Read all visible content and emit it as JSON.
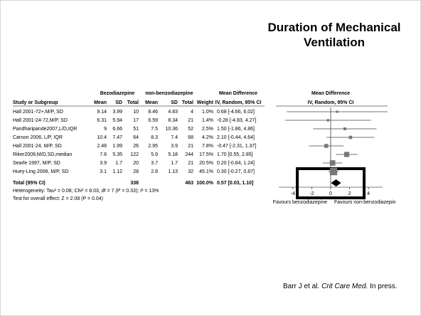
{
  "title": "Duration of Mechanical Ventilation",
  "citation": {
    "authors": "Barr J et al.",
    "journal": "Crit Care Med.",
    "status": "In press."
  },
  "chart_data": {
    "type": "forest",
    "column_groups": [
      "Bezodiazepine",
      "non-benzodiazepine",
      "Mean Difference",
      "Mean Difference"
    ],
    "columns": [
      "Study or Subgroup",
      "Mean",
      "SD",
      "Total",
      "Mean",
      "SD",
      "Total",
      "Weight",
      "IV, Random, 95% CI",
      "IV, Random, 95% CI"
    ],
    "categories": [
      "Hall 2001-72+,M/P, SD",
      "Hall 2001-24-72,M/P, SD",
      "Pandharipande2007,L/D,IQR",
      "Carson 2006, L/P, IQR",
      "Hall 2001-24, M/P, SD",
      "Riker2009,M/D,SD,median",
      "Searle 1997, M/P, SD",
      "Huey-Ling 2008, M/P, SD"
    ],
    "table": [
      [
        9.14,
        3.99,
        10,
        8.46,
        4.83,
        4,
        "1.0%"
      ],
      [
        6.31,
        5.94,
        17,
        6.59,
        8.34,
        21,
        "1.4%"
      ],
      [
        9,
        6.66,
        51,
        7.5,
        10.36,
        52,
        "2.5%"
      ],
      [
        10.4,
        7.47,
        64,
        8.3,
        7.4,
        68,
        "4.2%"
      ],
      [
        2.48,
        1.99,
        26,
        2.95,
        3.9,
        21,
        "7.8%"
      ],
      [
        7.6,
        5.35,
        122,
        5.9,
        5.18,
        244,
        "17.5%"
      ],
      [
        3.9,
        1.7,
        20,
        3.7,
        1.7,
        21,
        "20.5%"
      ],
      [
        3.1,
        1.12,
        28,
        2.8,
        1.13,
        32,
        "45.1%"
      ]
    ],
    "weights": [
      1.0,
      1.4,
      2.5,
      4.2,
      7.8,
      17.5,
      20.5,
      45.1
    ],
    "values": [
      0.68,
      -0.28,
      1.5,
      2.1,
      -0.47,
      1.7,
      0.2,
      0.3
    ],
    "ci_low": [
      -4.66,
      -4.83,
      -1.86,
      -0.44,
      -2.31,
      0.55,
      -0.84,
      -0.27
    ],
    "ci_high": [
      6.02,
      4.27,
      4.86,
      4.64,
      1.37,
      2.85,
      1.24,
      0.87
    ],
    "value_labels": [
      "0.68 [-4.66, 6.02]",
      "-0.28 [-4.83, 4.27]",
      "1.50 [-1.86, 4.86]",
      "2.10 [-0.44, 4.64]",
      "-0.47 [-2.31, 1.37]",
      "1.70 [0.55, 2.85]",
      "0.20 [-0.84, 1.24]",
      "0.30 [-0.27, 0.87]"
    ],
    "total": {
      "label": "Total (95% CI)",
      "group1_total": 338,
      "group2_total": 463,
      "weight": "100.0%",
      "value": 0.57,
      "ci_low": 0.03,
      "ci_high": 1.1,
      "value_label": "0.57 [0.03, 1.10]"
    },
    "heterogeneity": "Heterogeneity: Tau² = 0.08; Chi² = 8.03, df = 7 (P = 0.33); I² = 13%",
    "overall_effect": "Test for overall effect: Z = 2.08 (P = 0.04)",
    "xlim": [
      -5.5,
      5.5
    ],
    "xticks": [
      -4,
      -2,
      0,
      2,
      4
    ],
    "xlabel_left": "Favours benzodiazepine",
    "xlabel_right": "Favours non-benzodiazepin",
    "color": "#777777"
  }
}
